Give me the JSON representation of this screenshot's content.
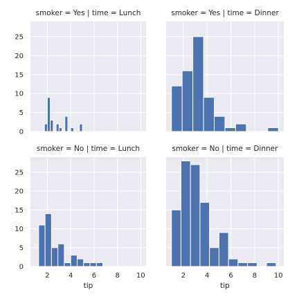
{
  "chart_data": {
    "type": "bar",
    "subtype": "histogram-facet-grid",
    "x_variable": "tip",
    "x_ticks": [
      2,
      4,
      6,
      8,
      10
    ],
    "y_ticks": [
      0,
      5,
      10,
      15,
      20,
      25
    ],
    "xlim": [
      0.55,
      10.45
    ],
    "ylim": [
      0,
      29
    ],
    "grid": true,
    "shared_x": true,
    "shared_y": true,
    "colors": {
      "bar": "#4c72b0",
      "panel_background": "#eaeaf2",
      "grid": "#ffffff"
    },
    "panels": [
      {
        "title": "smoker = Yes | time = Lunch",
        "bin_width": 0.25,
        "bins": [
          {
            "x0": 1.75,
            "count": 2
          },
          {
            "x0": 2.0,
            "count": 9
          },
          {
            "x0": 2.25,
            "count": 3
          },
          {
            "x0": 2.75,
            "count": 2
          },
          {
            "x0": 3.0,
            "count": 1
          },
          {
            "x0": 3.5,
            "count": 4
          },
          {
            "x0": 4.0,
            "count": 1
          },
          {
            "x0": 4.75,
            "count": 2
          }
        ]
      },
      {
        "title": "smoker = Yes | time = Dinner",
        "bin_width": 0.9,
        "bins": [
          {
            "x0": 1.0,
            "count": 12
          },
          {
            "x0": 1.9,
            "count": 16
          },
          {
            "x0": 2.8,
            "count": 25
          },
          {
            "x0": 3.7,
            "count": 9
          },
          {
            "x0": 4.6,
            "count": 4
          },
          {
            "x0": 5.5,
            "count": 1
          },
          {
            "x0": 6.4,
            "count": 2
          },
          {
            "x0": 7.3,
            "count": 0
          },
          {
            "x0": 8.2,
            "count": 0
          },
          {
            "x0": 9.1,
            "count": 1
          }
        ]
      },
      {
        "title": "smoker = No | time = Lunch",
        "bin_width": 0.55,
        "bins": [
          {
            "x0": 1.25,
            "count": 11
          },
          {
            "x0": 1.8,
            "count": 14
          },
          {
            "x0": 2.35,
            "count": 5
          },
          {
            "x0": 2.9,
            "count": 6
          },
          {
            "x0": 3.45,
            "count": 1
          },
          {
            "x0": 4.0,
            "count": 3
          },
          {
            "x0": 4.55,
            "count": 2
          },
          {
            "x0": 5.1,
            "count": 1
          },
          {
            "x0": 5.65,
            "count": 1
          },
          {
            "x0": 6.2,
            "count": 1
          }
        ]
      },
      {
        "title": "smoker = No | time = Dinner",
        "bin_width": 0.8,
        "bins": [
          {
            "x0": 1.0,
            "count": 15
          },
          {
            "x0": 1.8,
            "count": 28
          },
          {
            "x0": 2.6,
            "count": 27
          },
          {
            "x0": 3.4,
            "count": 17
          },
          {
            "x0": 4.2,
            "count": 5
          },
          {
            "x0": 5.0,
            "count": 9
          },
          {
            "x0": 5.8,
            "count": 2
          },
          {
            "x0": 6.6,
            "count": 1
          },
          {
            "x0": 7.4,
            "count": 1
          },
          {
            "x0": 8.2,
            "count": 0
          },
          {
            "x0": 9.0,
            "count": 1
          }
        ]
      }
    ]
  }
}
